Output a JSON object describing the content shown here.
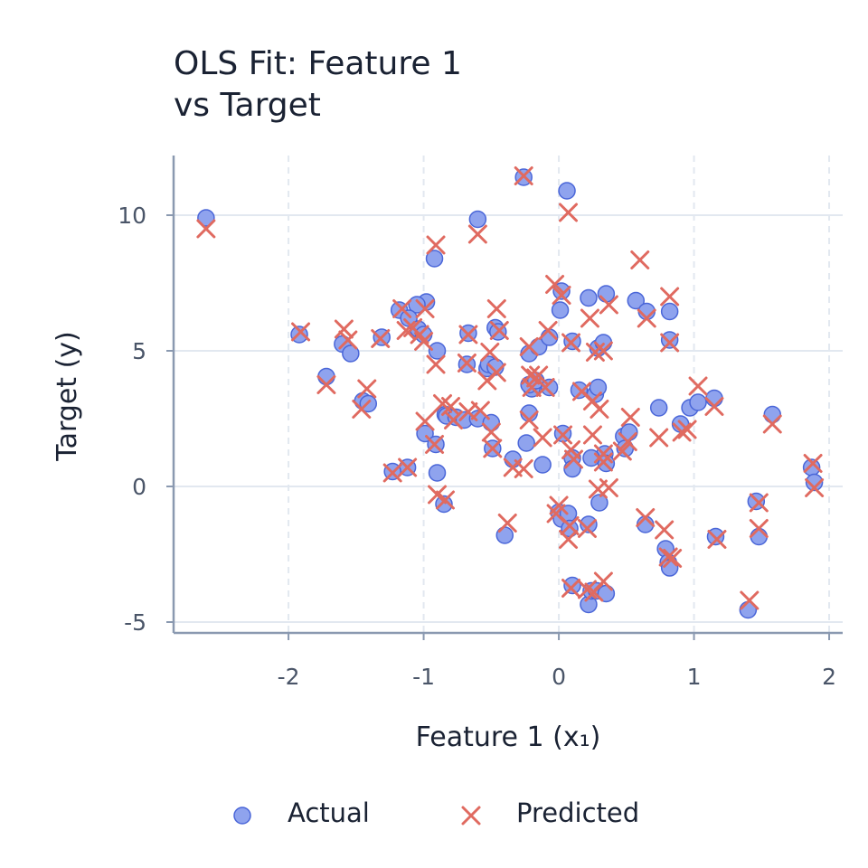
{
  "chart_data": {
    "type": "scatter",
    "title_lines": [
      "OLS Fit: Feature 1",
      "vs Target"
    ],
    "xlabel": "Feature 1 (x₁)",
    "ylabel": "Target (y)",
    "xlim": [
      -2.85,
      2.1
    ],
    "ylim": [
      -5.4,
      12.2
    ],
    "x_ticks": [
      -2,
      -1,
      0,
      1,
      2
    ],
    "x_tick_labels": [
      "-2",
      "-1",
      "0",
      "1",
      "2"
    ],
    "y_ticks": [
      -5,
      0,
      5,
      10
    ],
    "y_tick_labels": [
      "-5",
      "0",
      "5",
      "10"
    ],
    "grid": true,
    "legend_position": "bottom-center",
    "colors": {
      "actual_fill": "#8fa3ee",
      "actual_edge": "#4a66d8",
      "predicted": "#e06a60",
      "grid": "#e2e8f0",
      "axis": "#8a99b0"
    },
    "series": [
      {
        "name": "Actual",
        "marker": "circle",
        "points": [
          [
            -2.61,
            9.9
          ],
          [
            -0.6,
            9.85
          ],
          [
            -0.26,
            11.4
          ],
          [
            0.06,
            10.9
          ],
          [
            -0.92,
            8.4
          ],
          [
            -0.98,
            6.8
          ],
          [
            -1.05,
            6.7
          ],
          [
            -1.18,
            6.5
          ],
          [
            -1.11,
            6.2
          ],
          [
            -1.04,
            5.8
          ],
          [
            -1.0,
            5.6
          ],
          [
            -1.92,
            5.6
          ],
          [
            -1.6,
            5.25
          ],
          [
            -1.54,
            4.9
          ],
          [
            -1.31,
            5.5
          ],
          [
            -1.72,
            4.05
          ],
          [
            -1.45,
            3.15
          ],
          [
            -1.41,
            3.05
          ],
          [
            -0.9,
            5.0
          ],
          [
            -0.67,
            5.65
          ],
          [
            -0.68,
            4.5
          ],
          [
            -0.53,
            4.35
          ],
          [
            -0.52,
            4.5
          ],
          [
            -0.47,
            4.4
          ],
          [
            -0.47,
            5.85
          ],
          [
            -0.45,
            5.7
          ],
          [
            -0.22,
            4.9
          ],
          [
            -0.15,
            5.15
          ],
          [
            -0.07,
            5.5
          ],
          [
            0.01,
            6.5
          ],
          [
            0.02,
            7.2
          ],
          [
            0.22,
            6.95
          ],
          [
            0.29,
            5.1
          ],
          [
            0.33,
            5.3
          ],
          [
            0.35,
            7.1
          ],
          [
            0.57,
            6.85
          ],
          [
            0.65,
            6.45
          ],
          [
            0.82,
            6.45
          ],
          [
            0.82,
            5.4
          ],
          [
            0.1,
            5.35
          ],
          [
            -0.2,
            3.6
          ],
          [
            -0.22,
            3.75
          ],
          [
            -0.17,
            3.9
          ],
          [
            -0.07,
            3.65
          ],
          [
            0.15,
            3.55
          ],
          [
            0.27,
            3.4
          ],
          [
            0.29,
            3.65
          ],
          [
            0.34,
            1.2
          ],
          [
            0.35,
            0.85
          ],
          [
            0.48,
            1.85
          ],
          [
            0.52,
            2.0
          ],
          [
            0.49,
            1.4
          ],
          [
            0.74,
            2.9
          ],
          [
            0.9,
            2.3
          ],
          [
            0.97,
            2.9
          ],
          [
            1.03,
            3.1
          ],
          [
            1.15,
            3.25
          ],
          [
            1.58,
            2.65
          ],
          [
            1.87,
            0.7
          ],
          [
            1.89,
            0.15
          ],
          [
            -0.84,
            2.65
          ],
          [
            -0.83,
            2.6
          ],
          [
            -0.76,
            2.55
          ],
          [
            -0.7,
            2.45
          ],
          [
            -0.6,
            2.5
          ],
          [
            -0.5,
            2.35
          ],
          [
            -0.49,
            1.4
          ],
          [
            -0.34,
            1.0
          ],
          [
            -0.22,
            2.7
          ],
          [
            -0.24,
            1.6
          ],
          [
            -0.12,
            0.8
          ],
          [
            0.03,
            1.95
          ],
          [
            0.1,
            1.05
          ],
          [
            0.1,
            0.65
          ],
          [
            0.24,
            1.05
          ],
          [
            -0.99,
            1.95
          ],
          [
            -0.91,
            1.55
          ],
          [
            -0.9,
            0.5
          ],
          [
            -1.12,
            0.7
          ],
          [
            -1.23,
            0.55
          ],
          [
            -0.85,
            -0.65
          ],
          [
            -0.4,
            -1.8
          ],
          [
            0.0,
            -0.95
          ],
          [
            0.02,
            -1.2
          ],
          [
            0.07,
            -1.0
          ],
          [
            0.08,
            -1.55
          ],
          [
            0.22,
            -1.4
          ],
          [
            0.3,
            -0.6
          ],
          [
            0.64,
            -1.4
          ],
          [
            0.79,
            -2.3
          ],
          [
            0.81,
            -2.8
          ],
          [
            0.82,
            -3.0
          ],
          [
            1.16,
            -1.85
          ],
          [
            1.46,
            -0.55
          ],
          [
            1.48,
            -1.85
          ],
          [
            1.4,
            -4.55
          ],
          [
            0.1,
            -3.65
          ],
          [
            0.22,
            -4.35
          ],
          [
            0.24,
            -3.85
          ],
          [
            0.28,
            -3.85
          ],
          [
            0.35,
            -3.95
          ]
        ]
      },
      {
        "name": "Predicted",
        "marker": "x",
        "points": [
          [
            -2.61,
            9.5
          ],
          [
            -0.6,
            9.3
          ],
          [
            -0.26,
            11.45
          ],
          [
            0.07,
            10.1
          ],
          [
            -0.91,
            8.9
          ],
          [
            -0.99,
            6.55
          ],
          [
            -1.08,
            5.85
          ],
          [
            -1.16,
            6.55
          ],
          [
            -1.13,
            5.75
          ],
          [
            -1.03,
            5.6
          ],
          [
            -1.0,
            5.35
          ],
          [
            -1.91,
            5.7
          ],
          [
            -1.59,
            5.8
          ],
          [
            -1.56,
            5.4
          ],
          [
            -1.32,
            5.45
          ],
          [
            -1.72,
            3.75
          ],
          [
            -1.46,
            2.85
          ],
          [
            -1.42,
            3.6
          ],
          [
            -0.91,
            4.5
          ],
          [
            -0.67,
            5.6
          ],
          [
            -0.68,
            4.55
          ],
          [
            -0.53,
            3.9
          ],
          [
            -0.51,
            4.95
          ],
          [
            -0.46,
            4.2
          ],
          [
            -0.46,
            6.55
          ],
          [
            -0.44,
            5.75
          ],
          [
            -0.22,
            5.15
          ],
          [
            -0.17,
            4.0
          ],
          [
            -0.08,
            5.75
          ],
          [
            -0.03,
            7.45
          ],
          [
            0.02,
            7.05
          ],
          [
            0.23,
            6.2
          ],
          [
            0.27,
            4.95
          ],
          [
            0.33,
            5.0
          ],
          [
            0.37,
            6.7
          ],
          [
            0.6,
            8.35
          ],
          [
            0.65,
            6.2
          ],
          [
            0.82,
            7.0
          ],
          [
            0.82,
            5.3
          ],
          [
            0.09,
            5.3
          ],
          [
            -0.2,
            3.65
          ],
          [
            -0.21,
            4.1
          ],
          [
            -0.15,
            4.1
          ],
          [
            -0.1,
            3.65
          ],
          [
            0.17,
            3.5
          ],
          [
            0.25,
            3.15
          ],
          [
            0.3,
            2.85
          ],
          [
            0.33,
            1.2
          ],
          [
            0.33,
            0.9
          ],
          [
            0.47,
            1.3
          ],
          [
            0.53,
            2.55
          ],
          [
            0.51,
            1.65
          ],
          [
            0.74,
            1.8
          ],
          [
            0.91,
            2.0
          ],
          [
            0.95,
            2.1
          ],
          [
            1.03,
            3.7
          ],
          [
            1.15,
            2.95
          ],
          [
            1.58,
            2.3
          ],
          [
            1.88,
            0.85
          ],
          [
            1.89,
            -0.05
          ],
          [
            -0.86,
            3.05
          ],
          [
            -0.8,
            2.95
          ],
          [
            -0.78,
            2.45
          ],
          [
            -0.67,
            2.75
          ],
          [
            -0.58,
            2.8
          ],
          [
            -0.5,
            2.0
          ],
          [
            -0.49,
            1.4
          ],
          [
            -0.34,
            0.7
          ],
          [
            -0.22,
            2.45
          ],
          [
            -0.26,
            0.65
          ],
          [
            -0.12,
            1.8
          ],
          [
            0.03,
            1.9
          ],
          [
            0.09,
            1.35
          ],
          [
            0.11,
            1.0
          ],
          [
            0.25,
            1.9
          ],
          [
            -0.99,
            2.4
          ],
          [
            -0.92,
            1.55
          ],
          [
            -0.9,
            -0.3
          ],
          [
            -1.12,
            0.7
          ],
          [
            -1.23,
            0.5
          ],
          [
            -0.84,
            -0.5
          ],
          [
            -0.38,
            -1.35
          ],
          [
            0.0,
            -0.7
          ],
          [
            -0.02,
            -1.0
          ],
          [
            0.08,
            -1.45
          ],
          [
            0.07,
            -1.95
          ],
          [
            0.21,
            -1.55
          ],
          [
            0.29,
            -0.1
          ],
          [
            0.64,
            -1.15
          ],
          [
            0.78,
            -1.6
          ],
          [
            0.81,
            -2.6
          ],
          [
            0.84,
            -2.65
          ],
          [
            1.17,
            -1.95
          ],
          [
            1.48,
            -0.6
          ],
          [
            1.48,
            -1.55
          ],
          [
            1.41,
            -4.2
          ],
          [
            0.09,
            -3.75
          ],
          [
            0.21,
            -3.8
          ],
          [
            0.26,
            -3.9
          ],
          [
            0.33,
            -3.5
          ],
          [
            0.37,
            -0.05
          ]
        ]
      }
    ]
  }
}
